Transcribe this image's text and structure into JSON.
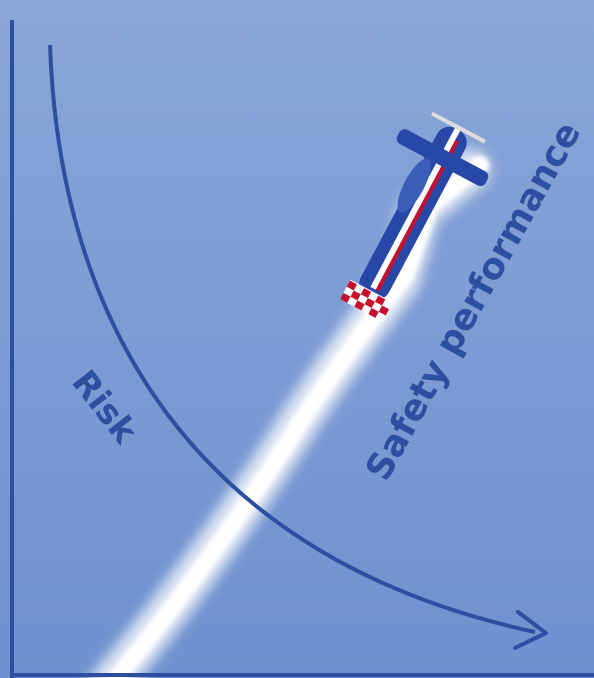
{
  "labels": {
    "risk": "Risk",
    "safety": "Safety performance"
  }
}
